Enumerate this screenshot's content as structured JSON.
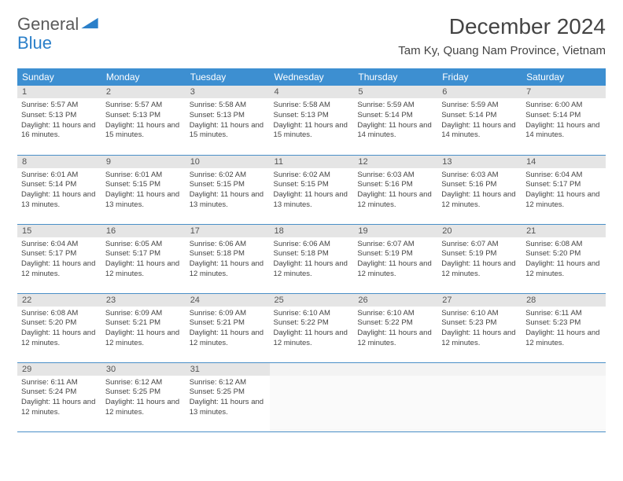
{
  "logo": {
    "text_a": "General",
    "text_b": "Blue"
  },
  "header": {
    "month_title": "December 2024",
    "location": "Tam Ky, Quang Nam Province, Vietnam"
  },
  "colors": {
    "header_bg": "#3d8fd1",
    "row_divider": "#4a8fc7",
    "daynum_bg": "#e5e5e5",
    "text": "#444444"
  },
  "weekdays": [
    "Sunday",
    "Monday",
    "Tuesday",
    "Wednesday",
    "Thursday",
    "Friday",
    "Saturday"
  ],
  "days": [
    {
      "n": "1",
      "sunrise": "5:57 AM",
      "sunset": "5:13 PM",
      "dh": "11",
      "dm": "16"
    },
    {
      "n": "2",
      "sunrise": "5:57 AM",
      "sunset": "5:13 PM",
      "dh": "11",
      "dm": "15"
    },
    {
      "n": "3",
      "sunrise": "5:58 AM",
      "sunset": "5:13 PM",
      "dh": "11",
      "dm": "15"
    },
    {
      "n": "4",
      "sunrise": "5:58 AM",
      "sunset": "5:13 PM",
      "dh": "11",
      "dm": "15"
    },
    {
      "n": "5",
      "sunrise": "5:59 AM",
      "sunset": "5:14 PM",
      "dh": "11",
      "dm": "14"
    },
    {
      "n": "6",
      "sunrise": "5:59 AM",
      "sunset": "5:14 PM",
      "dh": "11",
      "dm": "14"
    },
    {
      "n": "7",
      "sunrise": "6:00 AM",
      "sunset": "5:14 PM",
      "dh": "11",
      "dm": "14"
    },
    {
      "n": "8",
      "sunrise": "6:01 AM",
      "sunset": "5:14 PM",
      "dh": "11",
      "dm": "13"
    },
    {
      "n": "9",
      "sunrise": "6:01 AM",
      "sunset": "5:15 PM",
      "dh": "11",
      "dm": "13"
    },
    {
      "n": "10",
      "sunrise": "6:02 AM",
      "sunset": "5:15 PM",
      "dh": "11",
      "dm": "13"
    },
    {
      "n": "11",
      "sunrise": "6:02 AM",
      "sunset": "5:15 PM",
      "dh": "11",
      "dm": "13"
    },
    {
      "n": "12",
      "sunrise": "6:03 AM",
      "sunset": "5:16 PM",
      "dh": "11",
      "dm": "12"
    },
    {
      "n": "13",
      "sunrise": "6:03 AM",
      "sunset": "5:16 PM",
      "dh": "11",
      "dm": "12"
    },
    {
      "n": "14",
      "sunrise": "6:04 AM",
      "sunset": "5:17 PM",
      "dh": "11",
      "dm": "12"
    },
    {
      "n": "15",
      "sunrise": "6:04 AM",
      "sunset": "5:17 PM",
      "dh": "11",
      "dm": "12"
    },
    {
      "n": "16",
      "sunrise": "6:05 AM",
      "sunset": "5:17 PM",
      "dh": "11",
      "dm": "12"
    },
    {
      "n": "17",
      "sunrise": "6:06 AM",
      "sunset": "5:18 PM",
      "dh": "11",
      "dm": "12"
    },
    {
      "n": "18",
      "sunrise": "6:06 AM",
      "sunset": "5:18 PM",
      "dh": "11",
      "dm": "12"
    },
    {
      "n": "19",
      "sunrise": "6:07 AM",
      "sunset": "5:19 PM",
      "dh": "11",
      "dm": "12"
    },
    {
      "n": "20",
      "sunrise": "6:07 AM",
      "sunset": "5:19 PM",
      "dh": "11",
      "dm": "12"
    },
    {
      "n": "21",
      "sunrise": "6:08 AM",
      "sunset": "5:20 PM",
      "dh": "11",
      "dm": "12"
    },
    {
      "n": "22",
      "sunrise": "6:08 AM",
      "sunset": "5:20 PM",
      "dh": "11",
      "dm": "12"
    },
    {
      "n": "23",
      "sunrise": "6:09 AM",
      "sunset": "5:21 PM",
      "dh": "11",
      "dm": "12"
    },
    {
      "n": "24",
      "sunrise": "6:09 AM",
      "sunset": "5:21 PM",
      "dh": "11",
      "dm": "12"
    },
    {
      "n": "25",
      "sunrise": "6:10 AM",
      "sunset": "5:22 PM",
      "dh": "11",
      "dm": "12"
    },
    {
      "n": "26",
      "sunrise": "6:10 AM",
      "sunset": "5:22 PM",
      "dh": "11",
      "dm": "12"
    },
    {
      "n": "27",
      "sunrise": "6:10 AM",
      "sunset": "5:23 PM",
      "dh": "11",
      "dm": "12"
    },
    {
      "n": "28",
      "sunrise": "6:11 AM",
      "sunset": "5:23 PM",
      "dh": "11",
      "dm": "12"
    },
    {
      "n": "29",
      "sunrise": "6:11 AM",
      "sunset": "5:24 PM",
      "dh": "11",
      "dm": "12"
    },
    {
      "n": "30",
      "sunrise": "6:12 AM",
      "sunset": "5:25 PM",
      "dh": "11",
      "dm": "12"
    },
    {
      "n": "31",
      "sunrise": "6:12 AM",
      "sunset": "5:25 PM",
      "dh": "11",
      "dm": "13"
    }
  ],
  "labels": {
    "sunrise": "Sunrise:",
    "sunset": "Sunset:",
    "daylight_prefix": "Daylight:",
    "hours_word": "hours",
    "and_word": "and",
    "minutes_word": "minutes."
  }
}
